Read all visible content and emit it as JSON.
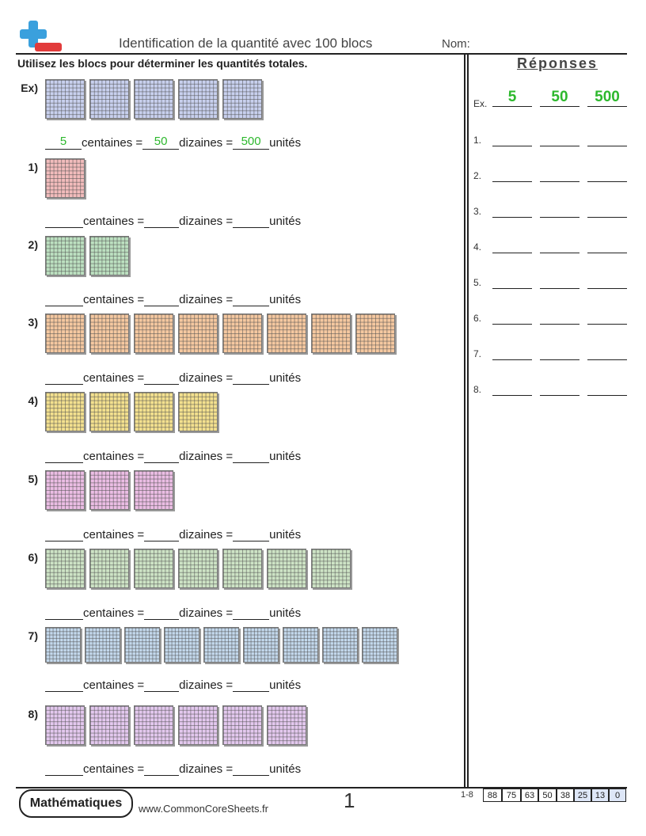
{
  "header": {
    "title": "Identification de la quantité avec 100 blocs",
    "name_label": "Nom:",
    "logo_icon": "plus-minus-icon"
  },
  "instructions": "Utilisez les blocs pour déterminer les quantités totales.",
  "labels": {
    "hundreds": "centaines =",
    "tens": "dizaines =",
    "units": "unités"
  },
  "example": {
    "label": "Ex)",
    "blocks": 5,
    "color": "#c8d0ee",
    "hundreds": "5",
    "tens": "50",
    "units": "500"
  },
  "problems": [
    {
      "label": "1)",
      "blocks": 1,
      "color": "#f2bcbc"
    },
    {
      "label": "2)",
      "blocks": 2,
      "color": "#bce0c0"
    },
    {
      "label": "3)",
      "blocks": 8,
      "color": "#f5c8a0"
    },
    {
      "label": "4)",
      "blocks": 4,
      "color": "#f3e08e"
    },
    {
      "label": "5)",
      "blocks": 3,
      "color": "#ebbde4"
    },
    {
      "label": "6)",
      "blocks": 7,
      "color": "#cde3c5"
    },
    {
      "label": "7)",
      "blocks": 9,
      "color": "#c3d8ec"
    },
    {
      "label": "8)",
      "blocks": 6,
      "color": "#e3c8ee"
    }
  ],
  "answers": {
    "title": "Réponses",
    "example": {
      "label": "Ex.",
      "values": [
        "5",
        "50",
        "500"
      ]
    },
    "rows": [
      "1.",
      "2.",
      "3.",
      "4.",
      "5.",
      "6.",
      "7.",
      "8."
    ]
  },
  "footer": {
    "badge": "Mathématiques",
    "website": "www.CommonCoreSheets.fr",
    "page": "1",
    "score_label": "1-8",
    "scores": [
      "88",
      "75",
      "63",
      "50",
      "38",
      "25",
      "13",
      "0"
    ]
  }
}
